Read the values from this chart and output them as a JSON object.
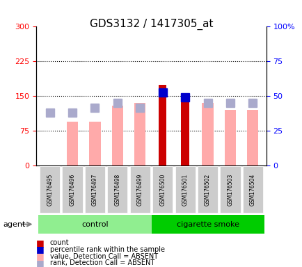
{
  "title": "GDS3132 / 1417305_at",
  "samples": [
    "GSM176495",
    "GSM176496",
    "GSM176497",
    "GSM176498",
    "GSM176499",
    "GSM176500",
    "GSM176501",
    "GSM176502",
    "GSM176503",
    "GSM176504"
  ],
  "groups": [
    "control",
    "control",
    "control",
    "control",
    "control",
    "cigarette smoke",
    "cigarette smoke",
    "cigarette smoke",
    "cigarette smoke",
    "cigarette smoke"
  ],
  "value_absent": [
    null,
    95,
    95,
    130,
    135,
    null,
    null,
    135,
    120,
    120
  ],
  "rank_absent": [
    115,
    115,
    125,
    135,
    125,
    null,
    null,
    135,
    135,
    135
  ],
  "count_value": [
    null,
    null,
    null,
    null,
    null,
    175,
    148,
    null,
    null,
    null
  ],
  "percentile_rank": [
    null,
    null,
    null,
    null,
    null,
    158,
    148,
    null,
    null,
    null
  ],
  "ylim_left": [
    0,
    300
  ],
  "ylim_right": [
    0,
    100
  ],
  "yticks_left": [
    0,
    75,
    150,
    225,
    300
  ],
  "yticks_right": [
    0,
    25,
    50,
    75,
    100
  ],
  "color_count": "#cc0000",
  "color_percentile": "#0000cc",
  "color_value_absent": "#ffaaaa",
  "color_rank_absent": "#aaaacc",
  "bg_plot": "#ffffff",
  "bg_xticklabels": "#cccccc",
  "bg_control": "#90ee90",
  "bg_smoke": "#00cc00",
  "agent_label": "agent",
  "group_control": "control",
  "group_smoke": "cigarette smoke",
  "legend_items": [
    "count",
    "percentile rank within the sample",
    "value, Detection Call = ABSENT",
    "rank, Detection Call = ABSENT"
  ],
  "legend_colors": [
    "#cc0000",
    "#0000cc",
    "#ffaaaa",
    "#aaaacc"
  ]
}
